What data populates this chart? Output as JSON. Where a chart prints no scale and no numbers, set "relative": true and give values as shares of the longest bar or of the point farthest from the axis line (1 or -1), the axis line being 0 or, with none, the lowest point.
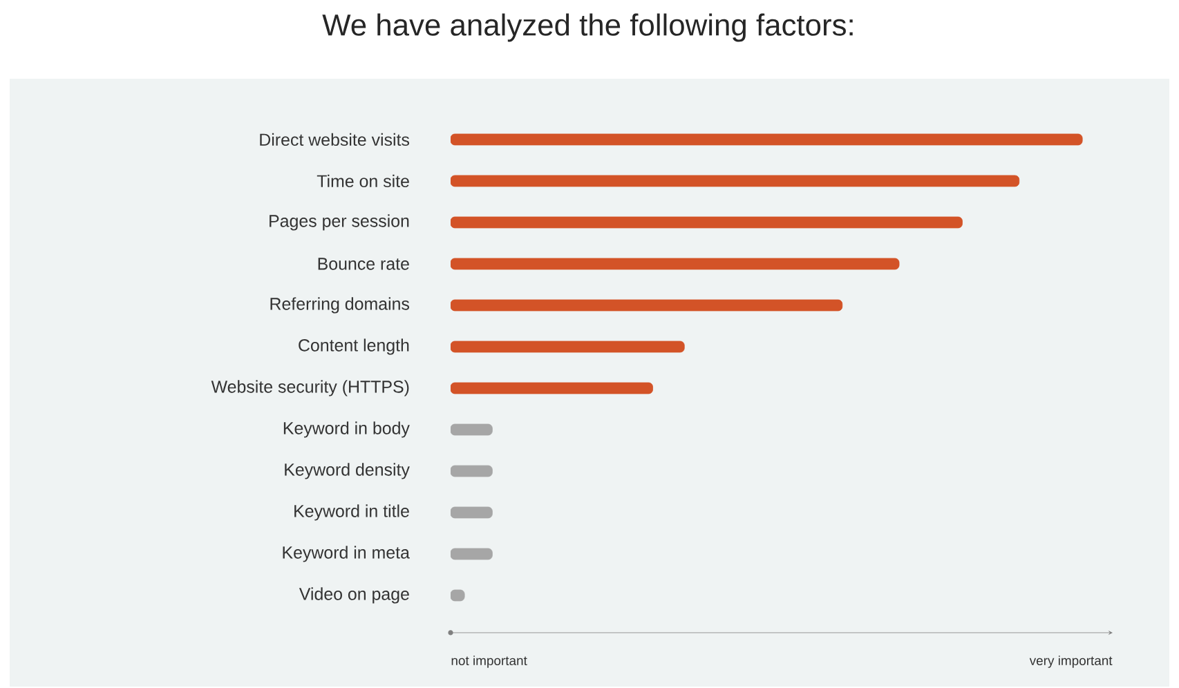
{
  "chart_data": {
    "type": "bar",
    "orientation": "horizontal",
    "relative": true,
    "title": "We have analyzed the following factors:",
    "categories": [
      "Direct website visits",
      "Time on site",
      "Pages per session",
      "Bounce rate",
      "Referring domains",
      "Content length",
      "Website security (HTTPS)",
      "Keyword in body",
      "Keyword density",
      "Keyword in title",
      "Keyword in meta",
      "Video on page"
    ],
    "values": [
      1,
      0.9,
      0.81,
      0.71,
      0.62,
      0.37,
      0.32,
      0.066,
      0.066,
      0.066,
      0.066,
      0.022
    ],
    "colors": [
      "#d35327",
      "#d35327",
      "#d35327",
      "#d35327",
      "#d35327",
      "#d35327",
      "#d35327",
      "#a6a6a6",
      "#a6a6a6",
      "#a6a6a6",
      "#a6a6a6",
      "#a6a6a6"
    ],
    "annotations": [
      "not important",
      "very important"
    ]
  }
}
